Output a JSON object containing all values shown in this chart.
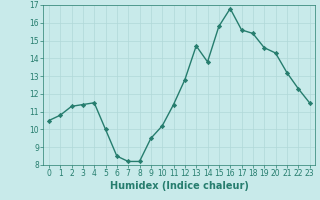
{
  "title": "",
  "x_values": [
    0,
    1,
    2,
    3,
    4,
    5,
    6,
    7,
    8,
    9,
    10,
    11,
    12,
    13,
    14,
    15,
    16,
    17,
    18,
    19,
    20,
    21,
    22,
    23
  ],
  "y_values": [
    10.5,
    10.8,
    11.3,
    11.4,
    11.5,
    10.0,
    8.5,
    8.2,
    8.2,
    9.5,
    10.2,
    11.4,
    12.8,
    14.7,
    13.8,
    15.8,
    16.8,
    15.6,
    15.4,
    14.6,
    14.3,
    13.2,
    12.3,
    11.5
  ],
  "line_color": "#267d6e",
  "marker": "D",
  "marker_size": 2.2,
  "line_width": 1.0,
  "bg_color": "#c8eaea",
  "grid_color": "#b0d8d8",
  "xlabel": "Humidex (Indice chaleur)",
  "xlim": [
    -0.5,
    23.5
  ],
  "ylim": [
    8,
    17
  ],
  "yticks": [
    8,
    9,
    10,
    11,
    12,
    13,
    14,
    15,
    16,
    17
  ],
  "xticks": [
    0,
    1,
    2,
    3,
    4,
    5,
    6,
    7,
    8,
    9,
    10,
    11,
    12,
    13,
    14,
    15,
    16,
    17,
    18,
    19,
    20,
    21,
    22,
    23
  ],
  "tick_fontsize": 5.5,
  "xlabel_fontsize": 7.0,
  "line_and_tick_color": "#267d6e"
}
